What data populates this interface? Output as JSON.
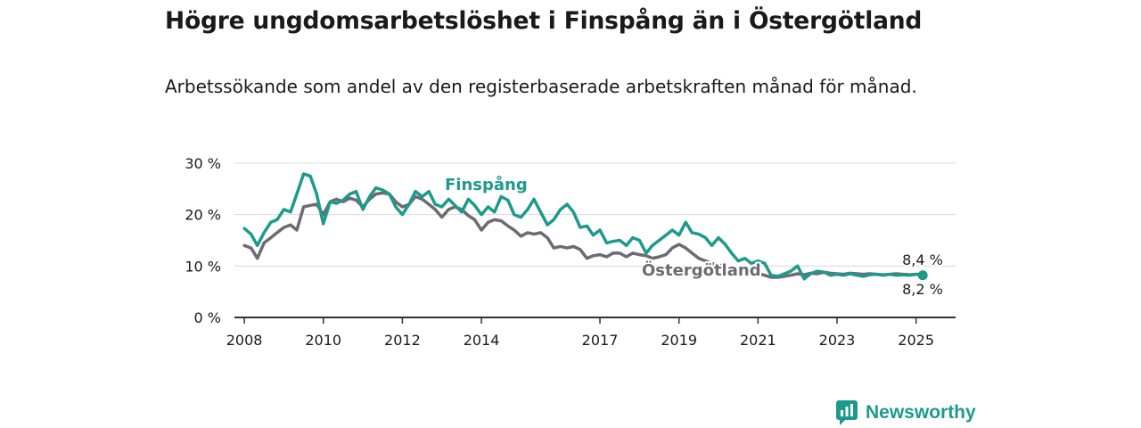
{
  "header": {
    "title": "Högre ungdomsarbetslöshet i Finspång än i Östergötland",
    "subtitle": "Arbetssökande som andel av den registerbaserade arbetskraften månad för månad."
  },
  "brand": {
    "name": "Newsworthy",
    "icon": "bar-chart-speech-bubble-icon",
    "color": "#1d9a8c"
  },
  "chart_data": {
    "type": "line",
    "title": "",
    "xlabel": "",
    "ylabel": "",
    "xlim": [
      2007.75,
      2026.0
    ],
    "ylim": [
      0,
      30
    ],
    "x_ticks": [
      2008,
      2010,
      2012,
      2014,
      2017,
      2019,
      2021,
      2023,
      2025
    ],
    "x_tick_labels": [
      "2008",
      "2010",
      "2012",
      "2014",
      "2017",
      "2019",
      "2021",
      "2023",
      "2025"
    ],
    "y_ticks": [
      0,
      10,
      20,
      30
    ],
    "y_tick_labels": [
      "0 %",
      "10 %",
      "20 %",
      "30 %"
    ],
    "grid": true,
    "legend": "inline labels next to lines",
    "series": [
      {
        "name": "Finspång",
        "color": "#1d9a8c",
        "x": [
          2008.0,
          2008.17,
          2008.33,
          2008.5,
          2008.67,
          2008.83,
          2009.0,
          2009.17,
          2009.33,
          2009.5,
          2009.67,
          2009.83,
          2010.0,
          2010.17,
          2010.33,
          2010.5,
          2010.67,
          2010.83,
          2011.0,
          2011.17,
          2011.33,
          2011.5,
          2011.67,
          2011.83,
          2012.0,
          2012.17,
          2012.33,
          2012.5,
          2012.67,
          2012.83,
          2013.0,
          2013.17,
          2013.33,
          2013.5,
          2013.67,
          2013.83,
          2014.0,
          2014.17,
          2014.33,
          2014.5,
          2014.67,
          2014.83,
          2015.0,
          2015.17,
          2015.33,
          2015.5,
          2015.67,
          2015.83,
          2016.0,
          2016.17,
          2016.33,
          2016.5,
          2016.67,
          2016.83,
          2017.0,
          2017.17,
          2017.33,
          2017.5,
          2017.67,
          2017.83,
          2018.0,
          2018.17,
          2018.33,
          2018.5,
          2018.67,
          2018.83,
          2019.0,
          2019.17,
          2019.33,
          2019.5,
          2019.67,
          2019.83,
          2020.0,
          2020.17,
          2020.33,
          2020.5,
          2020.67,
          2020.83,
          2021.0,
          2021.17,
          2021.33,
          2021.5,
          2021.67,
          2021.83,
          2022.0,
          2022.17,
          2022.33,
          2022.5,
          2022.67,
          2022.83,
          2023.0,
          2023.17,
          2023.33,
          2023.5,
          2023.67,
          2023.83,
          2024.0,
          2024.17,
          2024.33,
          2024.5,
          2024.67,
          2024.83,
          2025.0,
          2025.17
        ],
        "values": [
          17.3,
          16.2,
          14.0,
          16.5,
          18.5,
          19.0,
          21.0,
          20.5,
          24.0,
          27.9,
          27.5,
          24.0,
          18.2,
          22.5,
          22.2,
          22.8,
          24.0,
          24.5,
          21.0,
          23.5,
          25.2,
          24.8,
          24.0,
          21.5,
          20.0,
          22.0,
          24.5,
          23.5,
          24.5,
          22.0,
          21.5,
          23.0,
          21.8,
          20.5,
          23.0,
          21.8,
          20.0,
          21.5,
          20.5,
          23.5,
          22.8,
          20.0,
          19.5,
          21.0,
          23.0,
          20.5,
          18.0,
          19.0,
          21.0,
          22.0,
          20.5,
          17.5,
          17.8,
          16.0,
          17.0,
          14.5,
          14.8,
          15.0,
          14.0,
          15.5,
          15.0,
          12.5,
          14.0,
          15.0,
          16.0,
          17.0,
          16.0,
          18.5,
          16.5,
          16.2,
          15.5,
          14.0,
          15.5,
          14.2,
          12.5,
          11.0,
          11.5,
          10.5,
          11.0,
          10.5,
          8.2,
          8.0,
          8.5,
          9.0,
          10.0,
          7.5,
          8.5,
          9.0,
          8.8,
          8.2,
          8.4,
          8.2,
          8.5,
          8.2,
          8.0,
          8.3,
          8.4,
          8.2,
          8.4,
          8.2,
          8.3,
          8.2,
          8.4,
          8.2
        ],
        "last_value_label": "8,2 %"
      },
      {
        "name": "Östergötland",
        "color": "#6e6a72",
        "x": [
          2008.0,
          2008.17,
          2008.33,
          2008.5,
          2008.67,
          2008.83,
          2009.0,
          2009.17,
          2009.33,
          2009.5,
          2009.67,
          2009.83,
          2010.0,
          2010.17,
          2010.33,
          2010.5,
          2010.67,
          2010.83,
          2011.0,
          2011.17,
          2011.33,
          2011.5,
          2011.67,
          2011.83,
          2012.0,
          2012.17,
          2012.33,
          2012.5,
          2012.67,
          2012.83,
          2013.0,
          2013.17,
          2013.33,
          2013.5,
          2013.67,
          2013.83,
          2014.0,
          2014.17,
          2014.33,
          2014.5,
          2014.67,
          2014.83,
          2015.0,
          2015.17,
          2015.33,
          2015.5,
          2015.67,
          2015.83,
          2016.0,
          2016.17,
          2016.33,
          2016.5,
          2016.67,
          2016.83,
          2017.0,
          2017.17,
          2017.33,
          2017.5,
          2017.67,
          2017.83,
          2018.0,
          2018.17,
          2018.33,
          2018.5,
          2018.67,
          2018.83,
          2019.0,
          2019.17,
          2019.33,
          2019.5,
          2019.67,
          2019.83,
          2020.0,
          2020.17,
          2020.33,
          2020.5,
          2020.67,
          2020.83,
          2021.0,
          2021.17,
          2021.33,
          2021.5,
          2021.67,
          2021.83,
          2022.0,
          2022.17,
          2022.33,
          2022.5,
          2022.67,
          2022.83,
          2023.0,
          2023.17,
          2023.33,
          2023.5,
          2023.67,
          2023.83,
          2024.0,
          2024.17,
          2024.33,
          2024.5,
          2024.67,
          2024.83,
          2025.0,
          2025.17
        ],
        "values": [
          14.0,
          13.5,
          11.5,
          14.5,
          15.5,
          16.5,
          17.5,
          18.0,
          17.0,
          21.5,
          21.8,
          22.0,
          20.0,
          22.5,
          23.0,
          22.5,
          23.2,
          22.8,
          21.5,
          23.0,
          24.0,
          24.2,
          24.0,
          22.5,
          21.5,
          22.0,
          23.5,
          23.0,
          22.0,
          21.0,
          19.5,
          21.0,
          21.5,
          21.0,
          19.8,
          19.0,
          17.0,
          18.5,
          19.0,
          18.8,
          17.8,
          17.0,
          15.8,
          16.5,
          16.2,
          16.5,
          15.5,
          13.5,
          13.8,
          13.5,
          13.8,
          13.2,
          11.5,
          12.0,
          12.2,
          11.8,
          12.5,
          12.5,
          11.8,
          12.5,
          12.2,
          12.0,
          11.5,
          11.8,
          12.2,
          13.5,
          14.2,
          13.5,
          12.5,
          11.5,
          11.0,
          10.5,
          10.2,
          10.0,
          9.5,
          9.0,
          9.2,
          9.0,
          8.5,
          8.2,
          7.8,
          7.8,
          8.0,
          8.2,
          8.5,
          8.3,
          8.6,
          8.5,
          8.8,
          8.6,
          8.5,
          8.4,
          8.6,
          8.5,
          8.4,
          8.5,
          8.4,
          8.3,
          8.4,
          8.5,
          8.4,
          8.3,
          8.4,
          8.4
        ],
        "last_value_label": "8,4 %"
      }
    ]
  }
}
